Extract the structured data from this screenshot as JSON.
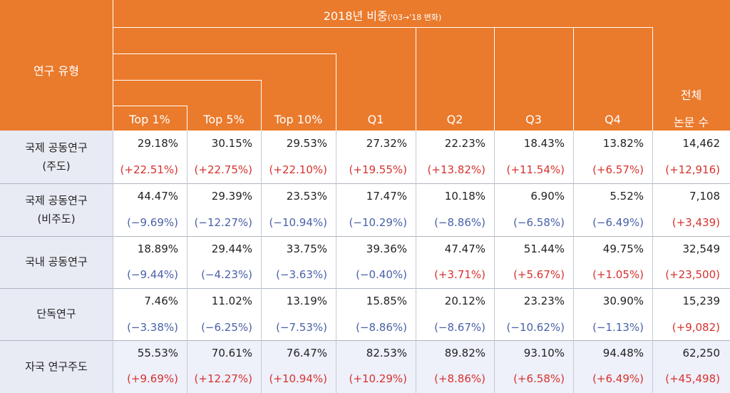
{
  "header": {
    "row_type_label": "연구 유형",
    "share_label_main": "2018년 비중",
    "share_label_sub": "('03→'18 변화)",
    "columns": [
      "Top 1%",
      "Top 5%",
      "Top 10%",
      "Q1",
      "Q2",
      "Q3",
      "Q4"
    ],
    "total_line1": "전체",
    "total_line2": "논문 수"
  },
  "rows": [
    {
      "label": [
        "국제 공동연구",
        "(주도)"
      ],
      "values": [
        "29.18%",
        "30.15%",
        "29.53%",
        "27.32%",
        "22.23%",
        "18.43%",
        "13.82%",
        "14,462"
      ],
      "changes": [
        "(+22.51%)",
        "(+22.75%)",
        "(+22.10%)",
        "(+19.55%)",
        "(+13.82%)",
        "(+11.54%)",
        "(+6.57%)",
        "(+12,916)"
      ]
    },
    {
      "label": [
        "국제 공동연구",
        "(비주도)"
      ],
      "values": [
        "44.47%",
        "29.39%",
        "23.53%",
        "17.47%",
        "10.18%",
        "6.90%",
        "5.52%",
        "7,108"
      ],
      "changes": [
        "(−9.69%)",
        "(−12.27%)",
        "(−10.94%)",
        "(−10.29%)",
        "(−8.86%)",
        "(−6.58%)",
        "(−6.49%)",
        "(+3,439)"
      ]
    },
    {
      "label": [
        "국내 공동연구"
      ],
      "values": [
        "18.89%",
        "29.44%",
        "33.75%",
        "39.36%",
        "47.47%",
        "51.44%",
        "49.75%",
        "32,549"
      ],
      "changes": [
        "(−9.44%)",
        "(−4.23%)",
        "(−3.63%)",
        "(−0.40%)",
        "(+3.71%)",
        "(+5.67%)",
        "(+1.05%)",
        "(+23,500)"
      ]
    },
    {
      "label": [
        "단독연구"
      ],
      "values": [
        "7.46%",
        "11.02%",
        "13.19%",
        "15.85%",
        "20.12%",
        "23.23%",
        "30.90%",
        "15,239"
      ],
      "changes": [
        "(−3.38%)",
        "(−6.25%)",
        "(−7.53%)",
        "(−8.86%)",
        "(−8.67%)",
        "(−10.62%)",
        "(−1.13%)",
        "(+9,082)"
      ]
    },
    {
      "label": [
        "자국 연구주도"
      ],
      "values": [
        "55.53%",
        "70.61%",
        "76.47%",
        "82.53%",
        "89.82%",
        "93.10%",
        "94.48%",
        "62,250"
      ],
      "changes": [
        "(+9.69%)",
        "(+12.27%)",
        "(+10.94%)",
        "(+10.29%)",
        "(+8.86%)",
        "(+6.58%)",
        "(+6.49%)",
        "(+45,498)"
      ]
    }
  ],
  "colors": {
    "header_bg": "#ea7a2c",
    "row_label_bg": "#e8eaf4",
    "highlight_row_bg": "#eef0fa",
    "positive_change": "#d6322e",
    "negative_change": "#4a61a8"
  }
}
